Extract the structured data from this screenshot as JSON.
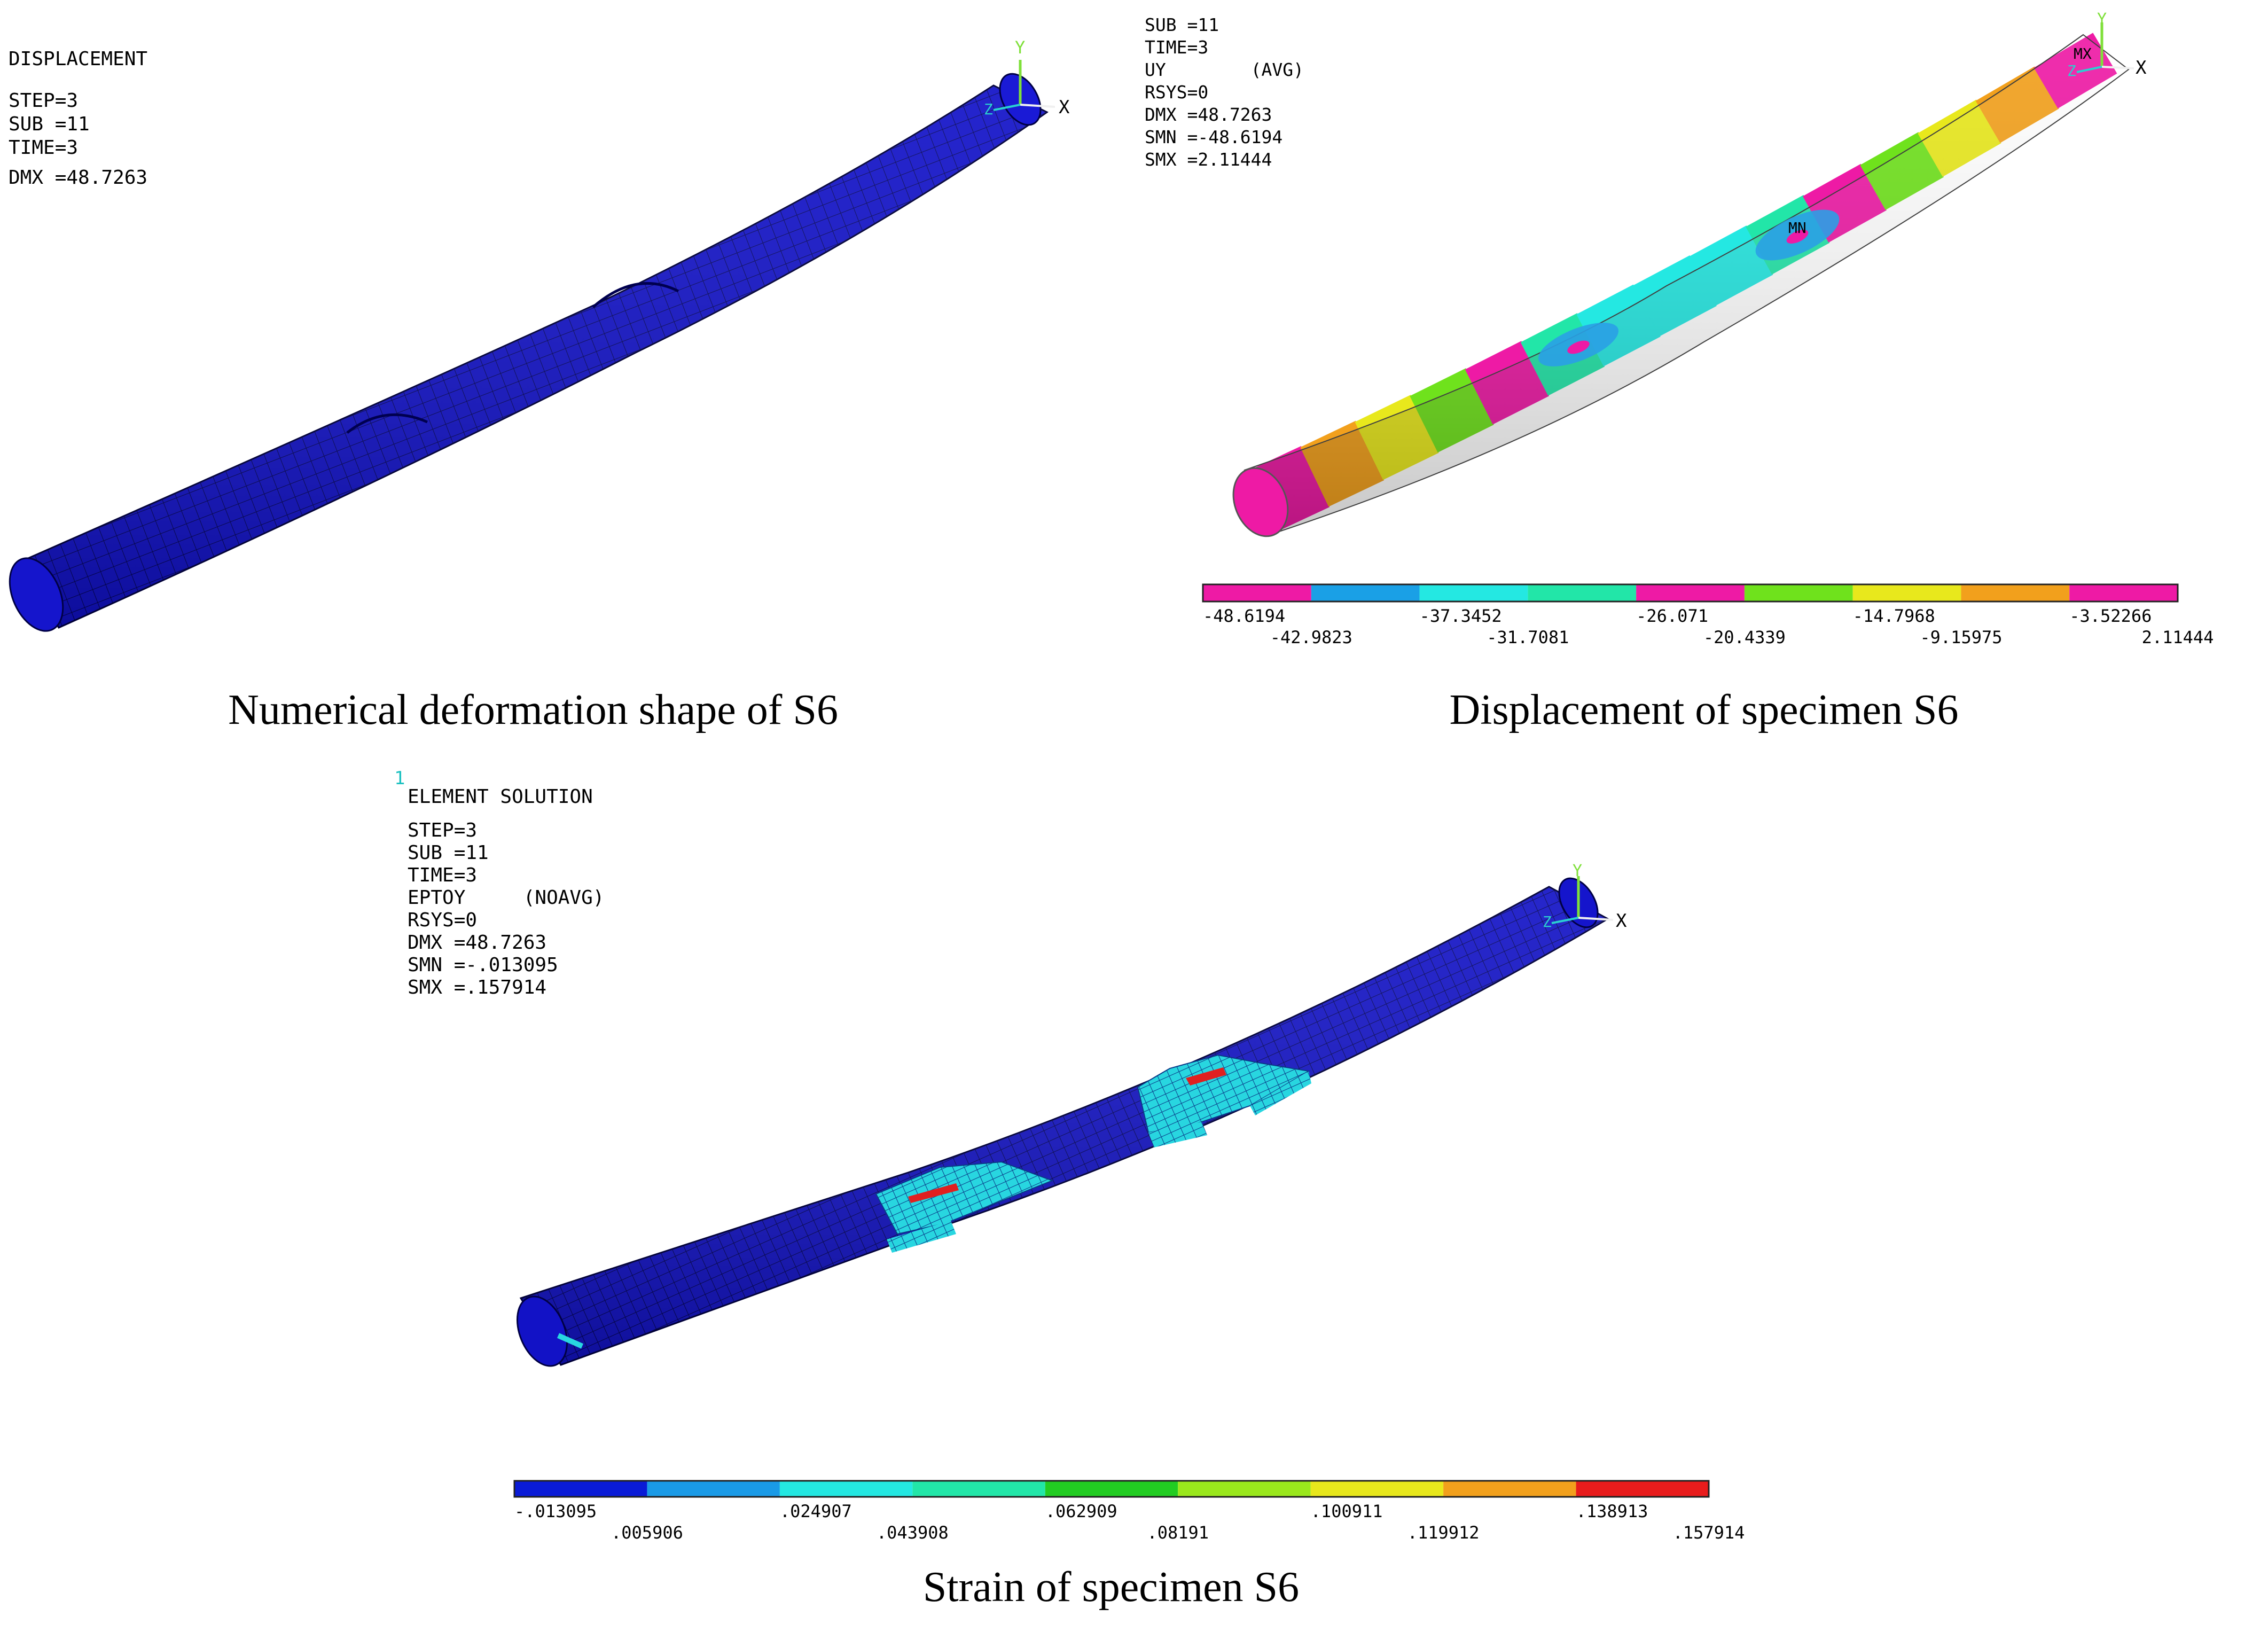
{
  "panels": {
    "deformation": {
      "info": [
        "DISPLACEMENT",
        "STEP=3",
        "SUB =11",
        "TIME=3",
        "DMX =48.7263"
      ],
      "caption": "Numerical deformation shape of S6",
      "axis": {
        "y": "Y",
        "x": "X",
        "z": "Z"
      }
    },
    "displacement": {
      "info": [
        "SUB =11",
        "TIME=3",
        "UY        (AVG)",
        "RSYS=0",
        "DMX =48.7263",
        "SMN =-48.6194",
        "SMX =2.11444"
      ],
      "caption": "Displacement of specimen S6",
      "markers": {
        "max": "MX",
        "min": "MN"
      },
      "axis": {
        "y": "Y",
        "x": "X",
        "z": "Z"
      },
      "legend": {
        "colors": [
          "#ee1aa5",
          "#1aa0e6",
          "#24e8e2",
          "#22e6a8",
          "#ee1aa5",
          "#6fe21c",
          "#e8e81c",
          "#f2a01c",
          "#ee1aa5"
        ],
        "labels_top": [
          "-48.6194",
          "-37.3452",
          "-26.071",
          "-14.7968",
          "-3.52266"
        ],
        "labels_bottom": [
          "-42.9823",
          "-31.7081",
          "-20.4339",
          "-9.15975",
          "2.11444"
        ]
      },
      "bands": [
        "#ee1aa5",
        "#f2a01c",
        "#e8e81c",
        "#6fe21c",
        "#ee1aa5",
        "#22e6a8",
        "#24e8e2",
        "#24e8e2",
        "#24e8e2",
        "#22e6a8",
        "#ee1aa5",
        "#6fe21c",
        "#e8e81c",
        "#f2a01c",
        "#ee1aa5"
      ]
    },
    "strain": {
      "figure_number": "1",
      "info": [
        "ELEMENT SOLUTION",
        "STEP=3",
        "SUB =11",
        "TIME=3",
        "EPTOY     (NOAVG)",
        "RSYS=0",
        "DMX =48.7263",
        "SMN =-.013095",
        "SMX =.157914"
      ],
      "caption": "Strain of specimen S6",
      "axis": {
        "y": "Y",
        "x": "X",
        "z": "Z"
      },
      "legend": {
        "colors": [
          "#0a1bd6",
          "#1a9ae6",
          "#24e8e2",
          "#22e6a8",
          "#22cc22",
          "#9ae81c",
          "#e8e81c",
          "#f2a01c",
          "#e81c1c"
        ],
        "labels_top": [
          "-.013095",
          ".024907",
          ".062909",
          ".100911",
          ".138913"
        ],
        "labels_bottom": [
          ".005906",
          ".043908",
          ".08191",
          ".119912",
          ".157914"
        ]
      }
    }
  }
}
